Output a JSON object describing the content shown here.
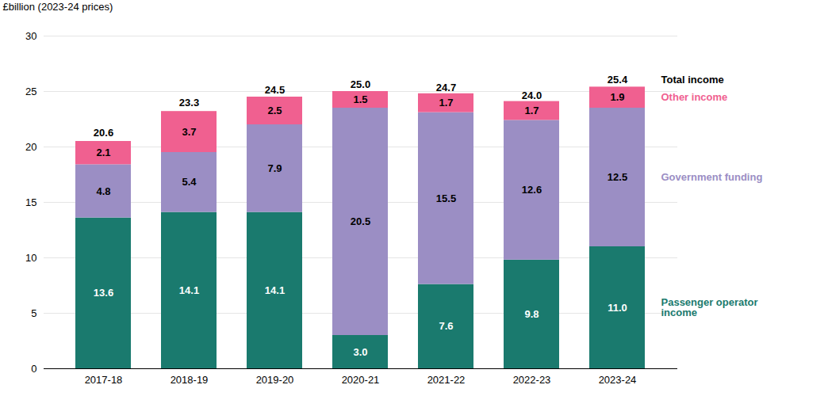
{
  "chart_data": {
    "type": "bar",
    "stacked": true,
    "data_labels": true,
    "grid": true,
    "legend": "right",
    "y_label": "£billion (2023-24 prices)",
    "categories": [
      "2017-18",
      "2018-19",
      "2019-20",
      "2020-21",
      "2021-22",
      "2022-23",
      "2023-24"
    ],
    "series": [
      {
        "name": "Passenger operator\nincome",
        "color": "#1a7a6e",
        "values": [
          13.6,
          14.1,
          14.1,
          3.0,
          7.6,
          9.8,
          11.0
        ],
        "value_labels": [
          "13.6",
          "14.1",
          "14.1",
          "3.0",
          "7.6",
          "9.8",
          "11.0"
        ]
      },
      {
        "name": "Government funding",
        "color": "#9b8ec4",
        "values": [
          4.8,
          5.4,
          7.9,
          20.5,
          15.5,
          12.6,
          12.5
        ]
      },
      {
        "name": "Other income",
        "color": "#f06090",
        "values": [
          2.1,
          3.7,
          2.5,
          1.5,
          1.7,
          1.7,
          1.9
        ]
      }
    ],
    "totals": {
      "name": "Total income",
      "values": [
        20.6,
        23.3,
        24.5,
        25.0,
        24.7,
        24.0,
        25.4
      ],
      "value_labels": [
        "20.6",
        "23.3",
        "24.5",
        "25.0",
        "24.7",
        "24.0",
        "25.4"
      ]
    },
    "ylim": [
      0,
      30
    ],
    "yticks": [
      0,
      5,
      10,
      15,
      20,
      25,
      30
    ]
  }
}
